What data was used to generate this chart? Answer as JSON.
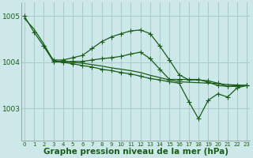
{
  "background_color": "#cce8e8",
  "grid_color": "#aacccc",
  "line_color": "#1a5c1a",
  "xlabel": "Graphe pression niveau de la mer (hPa)",
  "xlabel_fontsize": 7.5,
  "yticks": [
    1003,
    1004,
    1005
  ],
  "xticks": [
    0,
    1,
    2,
    3,
    4,
    5,
    6,
    7,
    8,
    9,
    10,
    11,
    12,
    13,
    14,
    15,
    16,
    17,
    18,
    19,
    20,
    21,
    22,
    23
  ],
  "xlim": [
    -0.3,
    23.3
  ],
  "ylim": [
    1002.3,
    1005.3
  ],
  "line1_nodots": {
    "x": [
      0,
      1,
      2,
      3,
      4,
      5,
      6,
      7,
      8,
      9,
      10,
      11,
      12,
      13,
      14,
      15,
      16,
      17,
      18,
      19,
      20,
      21,
      22,
      23
    ],
    "y": [
      1004.95,
      1004.72,
      1004.4,
      1004.03,
      1004.0,
      1004.0,
      1003.98,
      1003.95,
      1003.92,
      1003.88,
      1003.85,
      1003.82,
      1003.78,
      1003.72,
      1003.67,
      1003.62,
      1003.58,
      1003.57,
      1003.56,
      1003.55,
      1003.54,
      1003.52,
      1003.51,
      1003.5
    ]
  },
  "line2_hump": {
    "x": [
      2,
      3,
      4,
      5,
      6,
      7,
      8,
      9,
      10,
      11,
      12,
      13,
      14,
      15,
      16,
      17,
      18,
      19,
      20,
      21,
      22,
      23
    ],
    "y": [
      1004.35,
      1004.05,
      1004.05,
      1004.1,
      1004.15,
      1004.3,
      1004.45,
      1004.55,
      1004.62,
      1004.68,
      1004.7,
      1004.62,
      1004.35,
      1004.05,
      1003.73,
      1003.62,
      1003.62,
      1003.6,
      1003.55,
      1003.48,
      1003.48,
      1003.5
    ]
  },
  "line3_dip": {
    "x": [
      0,
      1,
      2,
      3,
      4,
      5,
      6,
      7,
      8,
      9,
      10,
      11,
      12,
      13,
      14,
      15,
      16,
      17,
      18,
      19,
      20,
      21,
      22,
      23
    ],
    "y": [
      1005.0,
      1004.65,
      1004.35,
      1004.02,
      1004.02,
      1004.02,
      1004.02,
      1004.05,
      1004.08,
      1004.1,
      1004.13,
      1004.18,
      1004.22,
      1004.08,
      1003.85,
      1003.63,
      1003.63,
      1003.63,
      1003.63,
      1003.57,
      1003.5,
      1003.48,
      1003.5,
      1003.5
    ]
  },
  "line4_diagonal": {
    "x": [
      3,
      4,
      5,
      6,
      7,
      8,
      9,
      10,
      11,
      12,
      13,
      14,
      15,
      16,
      17,
      18,
      19,
      20,
      21,
      22,
      23
    ],
    "y": [
      1004.02,
      1004.0,
      1003.97,
      1003.93,
      1003.9,
      1003.85,
      1003.82,
      1003.78,
      1003.75,
      1003.7,
      1003.65,
      1003.62,
      1003.58,
      1003.55,
      1003.15,
      1002.78,
      1003.18,
      1003.32,
      1003.25,
      1003.45,
      1003.5
    ]
  }
}
